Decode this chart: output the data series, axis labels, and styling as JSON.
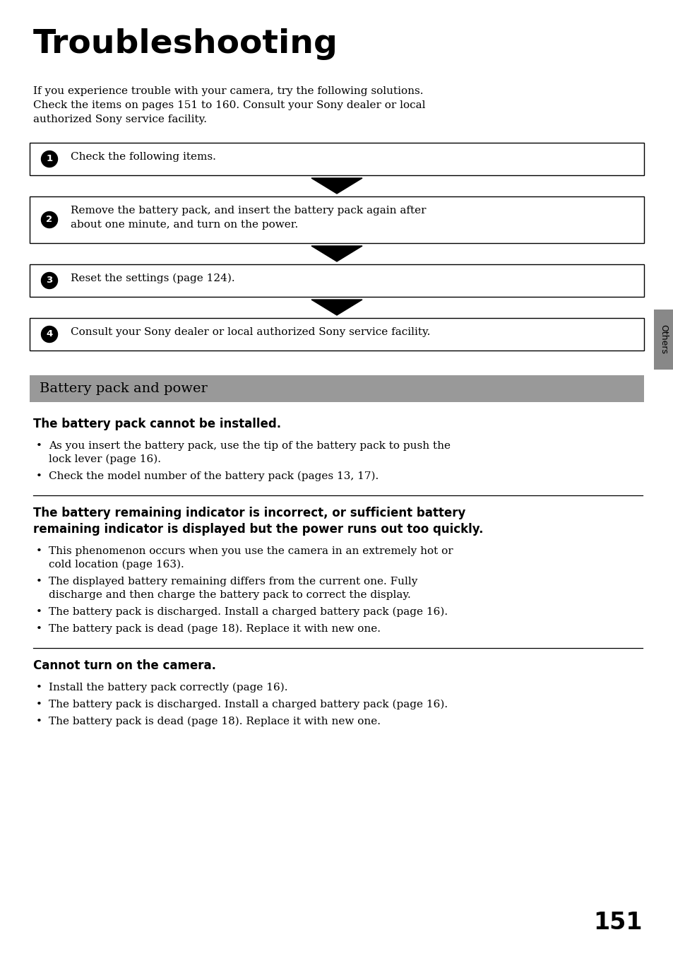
{
  "title": "Troubleshooting",
  "intro_lines": [
    "If you experience trouble with your camera, try the following solutions.",
    "Check the items on pages 151 to 160. Consult your Sony dealer or local",
    "authorized Sony service facility."
  ],
  "steps": [
    {
      "num": "1",
      "lines": [
        "Check the following items."
      ]
    },
    {
      "num": "2",
      "lines": [
        "Remove the battery pack, and insert the battery pack again after",
        "about one minute, and turn on the power."
      ]
    },
    {
      "num": "3",
      "lines": [
        "Reset the settings (page 124)."
      ]
    },
    {
      "num": "4",
      "lines": [
        "Consult your Sony dealer or local authorized Sony service facility."
      ]
    }
  ],
  "section_title": "Battery pack and power",
  "section_bg_color": "#999999",
  "subsections": [
    {
      "heading_lines": [
        "The battery pack cannot be installed."
      ],
      "heading_bold": true,
      "separator_above": false,
      "bullets": [
        [
          "As you insert the battery pack, use the tip of the battery pack to push the",
          "lock lever (page 16)."
        ],
        [
          "Check the model number of the battery pack (pages 13, 17)."
        ]
      ]
    },
    {
      "heading_lines": [
        "The battery remaining indicator is incorrect, or sufficient battery",
        "remaining indicator is displayed but the power runs out too quickly."
      ],
      "heading_bold": true,
      "separator_above": true,
      "bullets": [
        [
          "This phenomenon occurs when you use the camera in an extremely hot or",
          "cold location (page 163)."
        ],
        [
          "The displayed battery remaining differs from the current one. Fully",
          "discharge and then charge the battery pack to correct the display."
        ],
        [
          "The battery pack is discharged. Install a charged battery pack (page 16)."
        ],
        [
          "The battery pack is dead (page 18). Replace it with new one."
        ]
      ]
    },
    {
      "heading_lines": [
        "Cannot turn on the camera."
      ],
      "heading_bold": true,
      "separator_above": true,
      "bullets": [
        [
          "Install the battery pack correctly (page 16)."
        ],
        [
          "The battery pack is discharged. Install a charged battery pack (page 16)."
        ],
        [
          "The battery pack is dead (page 18). Replace it with new one."
        ]
      ]
    }
  ],
  "page_number": "151",
  "sidebar_text": "Others",
  "bg_color": "#ffffff",
  "text_color": "#000000",
  "sidebar_bg_color": "#888888"
}
